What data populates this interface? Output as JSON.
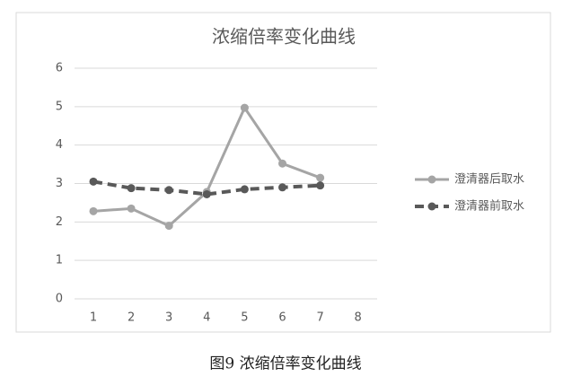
{
  "chart_data": {
    "type": "line",
    "title": "浓缩倍率变化曲线",
    "caption": "图9  浓缩倍率变化曲线",
    "categories": [
      "1",
      "2",
      "3",
      "4",
      "5",
      "6",
      "7",
      "8"
    ],
    "series": [
      {
        "name": "澄清器后取水",
        "color": "#a5a5a5",
        "line_style": "solid",
        "values": [
          2.28,
          2.35,
          1.9,
          2.78,
          4.97,
          3.52,
          3.15,
          null
        ]
      },
      {
        "name": "澄清器前取水",
        "color": "#595959",
        "line_style": "dashed",
        "values": [
          3.05,
          2.88,
          2.83,
          2.72,
          2.85,
          2.9,
          2.95,
          null
        ]
      }
    ],
    "ylim": [
      0,
      6
    ],
    "yticks": [
      0,
      1,
      2,
      3,
      4,
      5,
      6
    ],
    "grid": true,
    "legend": "right"
  }
}
